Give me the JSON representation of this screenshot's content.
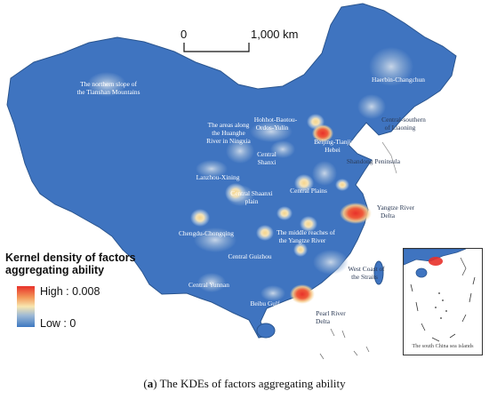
{
  "scale_bar": {
    "start_label": "0",
    "end_label": "1,000 km"
  },
  "legend": {
    "title": "Kernel density of factors aggregating ability",
    "high_label": "High : 0.008",
    "low_label": "Low : 0",
    "colors": {
      "high": "#e8312a",
      "mid": "#f8e7b0",
      "low": "#3d78c1"
    }
  },
  "map_colors": {
    "base": "#3f74c0",
    "outline": "#2a558f",
    "hotspot": "#e8312a"
  },
  "region_labels": [
    "The northern slope of the Tianshan Mountains",
    "Haerbin-Changchun",
    "Central-southern of Liaoning",
    "Hohhot-Baotou-Ordos-Yulin",
    "The areas along the Huanghe River in Ningxia",
    "Beijing-Tianjin-Hebei",
    "Shandong Peninsula",
    "Lanzhou-Xining",
    "Central Shanxi",
    "Central Shaanxi plain",
    "Central Plains",
    "Chengdu-Chongqing",
    "The middle reaches of the Yangtze River",
    "Yangtze River Delta",
    "Central Guizhou",
    "West Coast of the Straits",
    "Central Yunnan",
    "Beibu Gulf",
    "Pearl River Delta"
  ],
  "inset_caption": "The south China sea islands",
  "caption": {
    "label": "a",
    "text": " The KDEs of factors aggregating ability"
  }
}
